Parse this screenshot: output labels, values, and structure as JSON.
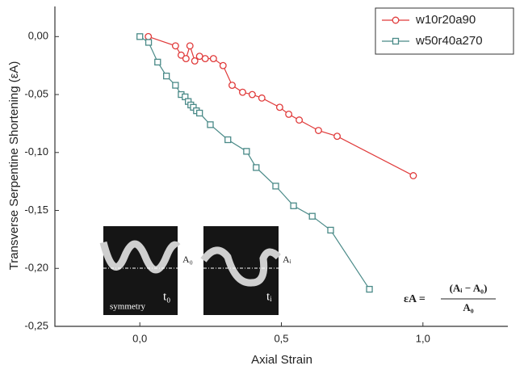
{
  "chart_data": {
    "type": "line",
    "xlabel": "Axial Strain",
    "ylabel": "Transverse Serpentine Shortening (εA)",
    "xlim": [
      -0.3,
      1.3
    ],
    "ylim": [
      -0.25,
      0.026
    ],
    "xticks": [
      {
        "value": 0,
        "label": "0,0"
      },
      {
        "value": 0.5,
        "label": "0,5"
      },
      {
        "value": 1,
        "label": "1,0"
      }
    ],
    "yticks": [
      {
        "value": 0,
        "label": "0,00"
      },
      {
        "value": -0.05,
        "label": "-0,05"
      },
      {
        "value": -0.1,
        "label": "-0,10"
      },
      {
        "value": -0.15,
        "label": "-0,15"
      },
      {
        "value": -0.2,
        "label": "-0,20"
      },
      {
        "value": -0.25,
        "label": "-0,25"
      }
    ],
    "legend": "top-right",
    "series": [
      {
        "name": "w10r20a90",
        "color": "#e03a3a",
        "marker": "circle",
        "x": [
          0.03,
          0.126,
          0.146,
          0.163,
          0.177,
          0.194,
          0.211,
          0.231,
          0.26,
          0.294,
          0.326,
          0.363,
          0.397,
          0.431,
          0.494,
          0.526,
          0.563,
          0.631,
          0.697,
          0.966
        ],
        "values": [
          0.0,
          -0.008,
          -0.016,
          -0.019,
          -0.008,
          -0.021,
          -0.017,
          -0.019,
          -0.019,
          -0.025,
          -0.042,
          -0.048,
          -0.05,
          -0.053,
          -0.061,
          -0.067,
          -0.072,
          -0.081,
          -0.086,
          -0.12
        ]
      },
      {
        "name": "w50r40a270",
        "color": "#4a8a88",
        "marker": "square",
        "x": [
          0.0,
          0.031,
          0.063,
          0.094,
          0.126,
          0.146,
          0.16,
          0.171,
          0.18,
          0.189,
          0.2,
          0.211,
          0.249,
          0.311,
          0.377,
          0.411,
          0.48,
          0.543,
          0.609,
          0.674,
          0.811
        ],
        "values": [
          0.0,
          -0.005,
          -0.022,
          -0.034,
          -0.042,
          -0.05,
          -0.052,
          -0.056,
          -0.059,
          -0.061,
          -0.064,
          -0.066,
          -0.076,
          -0.089,
          -0.099,
          -0.113,
          -0.129,
          -0.146,
          -0.155,
          -0.167,
          -0.218
        ]
      }
    ],
    "annotations": [
      "A₀",
      "symmetry",
      "t₀",
      "Aᵢ",
      "tᵢ"
    ],
    "formula": {
      "lhs": "εA =",
      "numerator": "(Aᵢ − A₀)",
      "denominator": "A₀"
    }
  }
}
